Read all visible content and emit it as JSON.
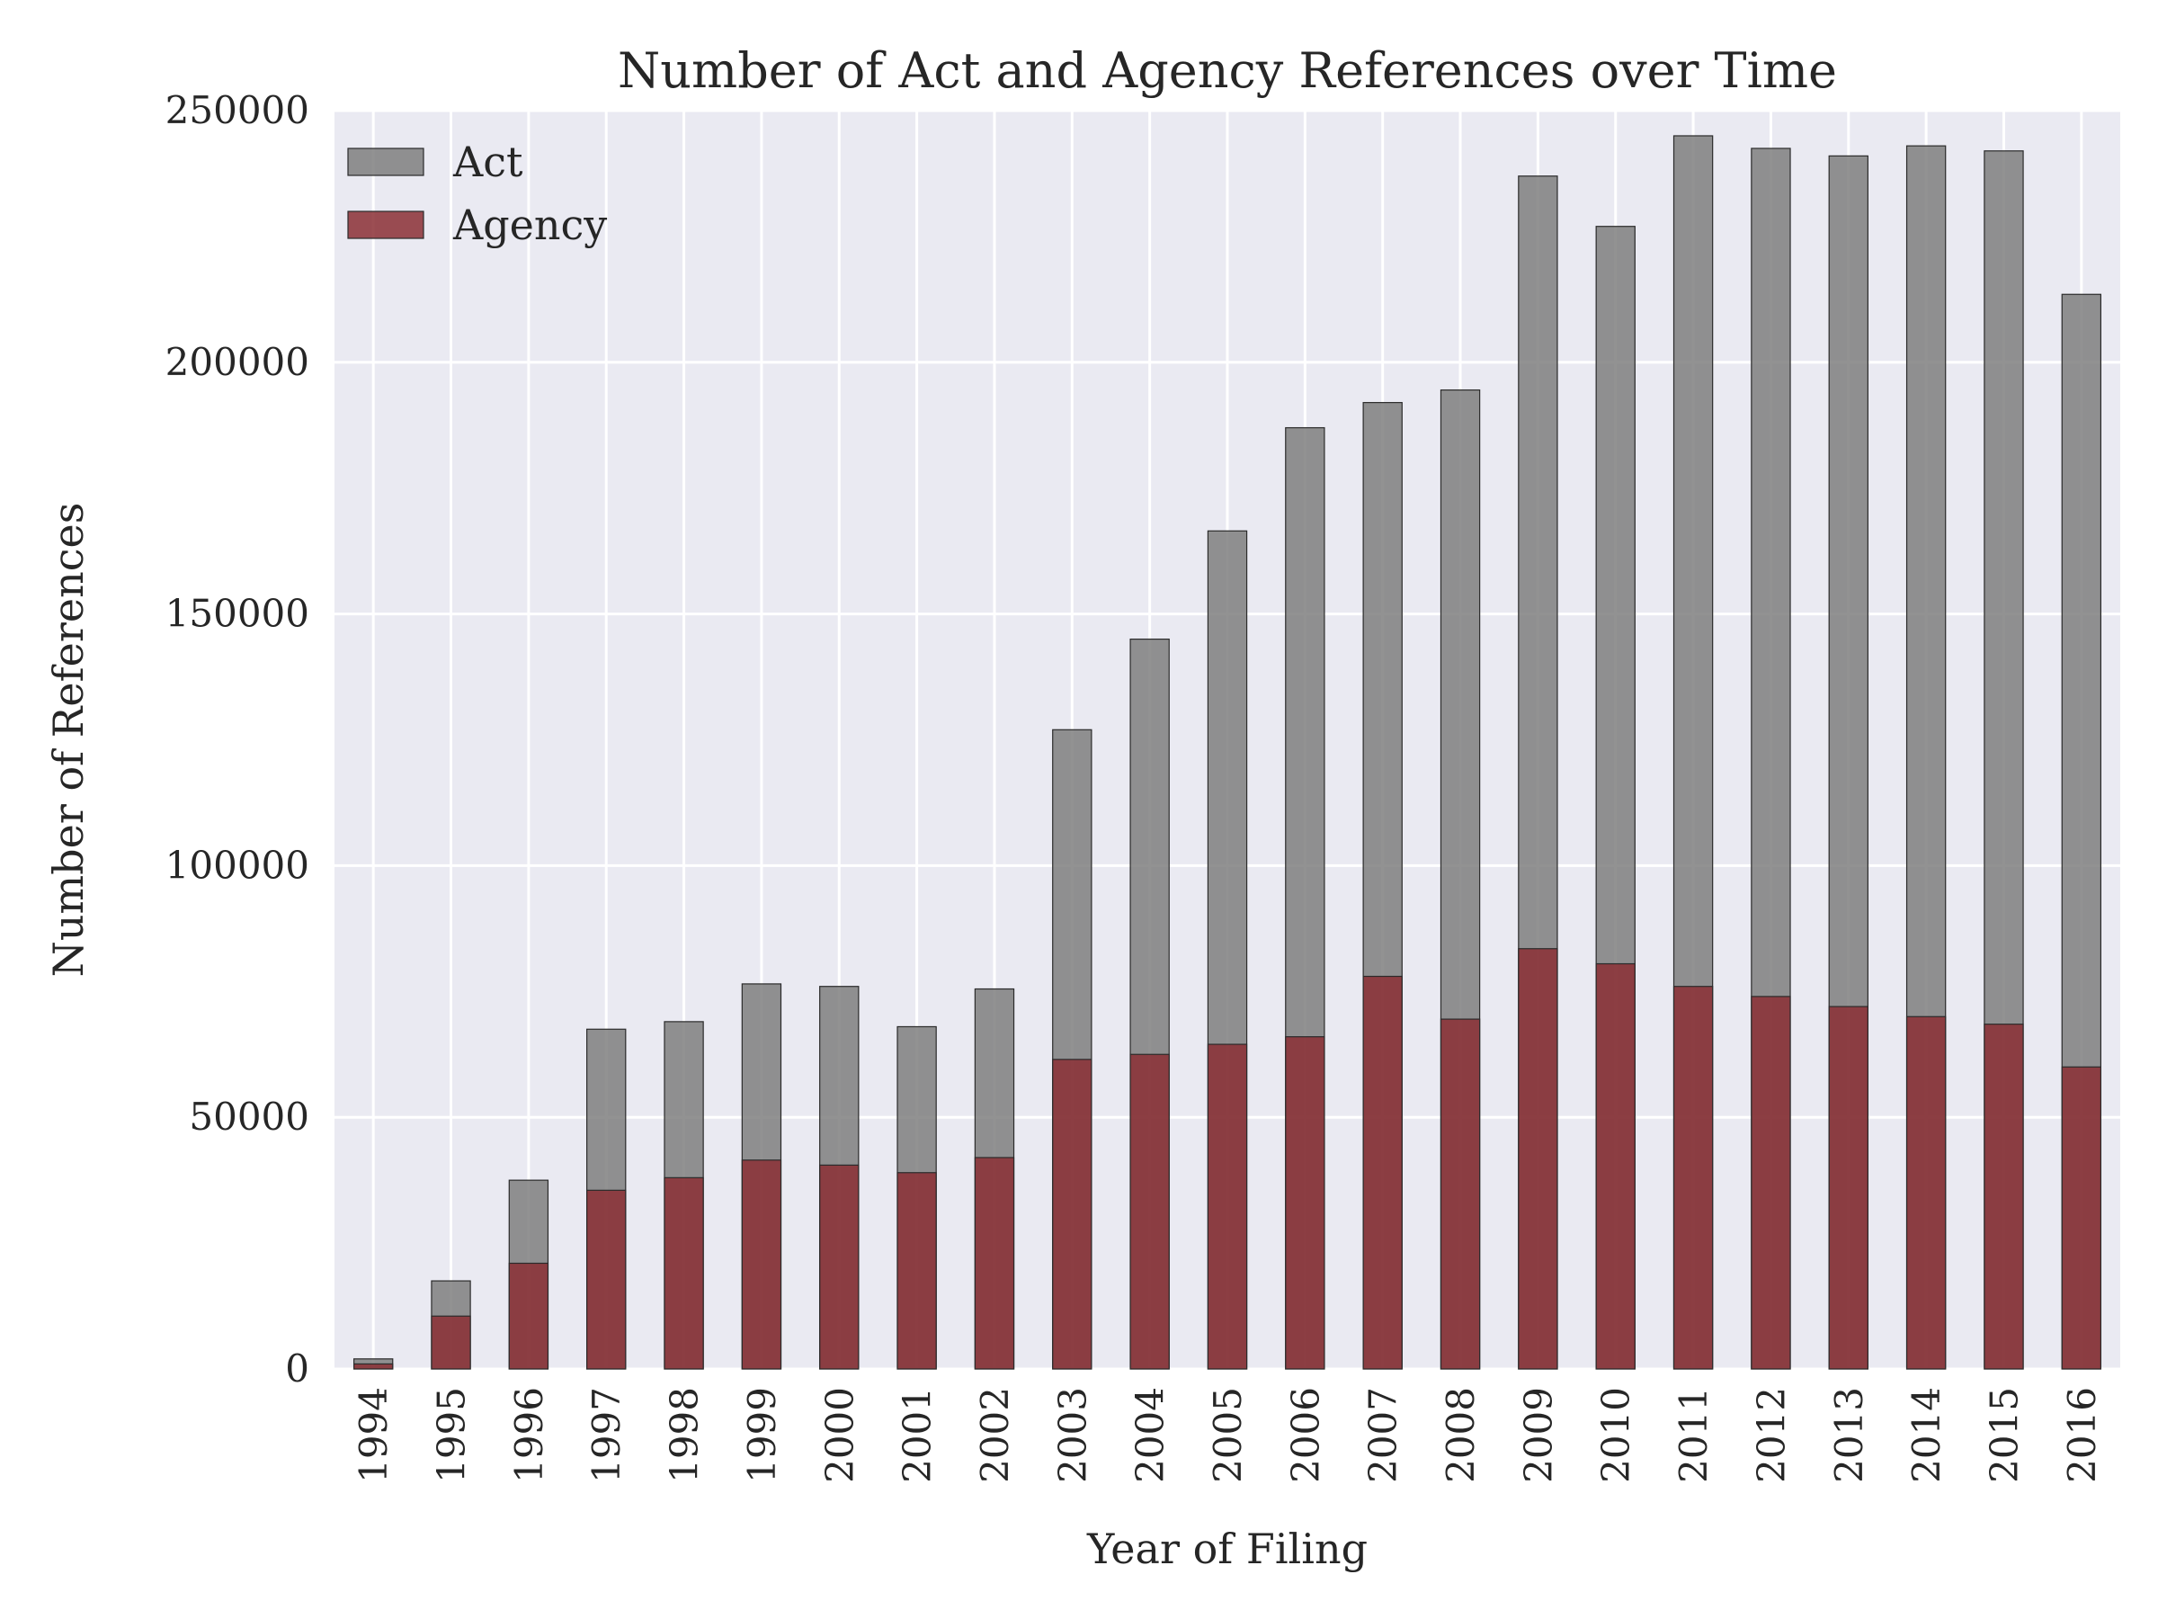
{
  "chart_data": {
    "type": "bar",
    "title": "Number of Act and Agency References over Time",
    "xlabel": "Year of Filing",
    "ylabel": "Number of References",
    "ylim": [
      0,
      250000
    ],
    "yticks": [
      "0",
      "50000",
      "100000",
      "150000",
      "200000",
      "250000"
    ],
    "grid": true,
    "legend_position": "top-left",
    "overlay": true,
    "categories": [
      "1994",
      "1995",
      "1996",
      "1997",
      "1998",
      "1999",
      "2000",
      "2001",
      "2002",
      "2003",
      "2004",
      "2005",
      "2006",
      "2007",
      "2008",
      "2009",
      "2010",
      "2011",
      "2012",
      "2013",
      "2014",
      "2015",
      "2016"
    ],
    "series": [
      {
        "name": "Act",
        "color": "#7f7f7f",
        "values": [
          2000,
          17500,
          37500,
          67500,
          69000,
          76500,
          76000,
          68000,
          75500,
          127000,
          145000,
          166500,
          187000,
          192000,
          194500,
          237000,
          227000,
          245000,
          242500,
          241000,
          243000,
          242000,
          213500
        ]
      },
      {
        "name": "Agency",
        "color": "#8b2f35",
        "values": [
          1000,
          10500,
          21000,
          35500,
          38000,
          41500,
          40500,
          39000,
          42000,
          61500,
          62500,
          64500,
          66000,
          78000,
          69500,
          83500,
          80500,
          76000,
          74000,
          72000,
          70000,
          68500,
          60000
        ]
      }
    ]
  }
}
